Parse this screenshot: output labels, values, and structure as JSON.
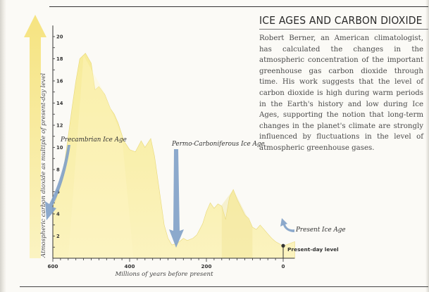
{
  "article": {
    "title": "ICE AGES AND CARBON DIOXIDE",
    "body": "Robert Berner, an American climatologist, has calculated the changes in the atmospheric concentration of the important greenhouse gas carbon dioxide through time. His work suggests that the level of carbon dioxide is high during warm periods in the Earth's history and low during Ice Ages, supporting the notion that long-term changes in the planet's climate are strongly influenced by fluctuations in the level of atmospheric greenhouse gases."
  },
  "chart_data": {
    "type": "area",
    "xlabel": "Millions of years before present",
    "ylabel": "Atmospheric carbon dioxide as multiple of present-day level",
    "xlim": [
      600,
      0
    ],
    "ylim": [
      0,
      21
    ],
    "x_ticks": [
      600,
      400,
      200,
      0
    ],
    "y_ticks": [
      2,
      4,
      6,
      8,
      10,
      12,
      14,
      16,
      18,
      20
    ],
    "grid": false,
    "series": [
      {
        "x": [
          600,
          590,
          575,
          560,
          550,
          540,
          530,
          515,
          500,
          490,
          480,
          465,
          450,
          440,
          430,
          415,
          400,
          385,
          370,
          360,
          345,
          335,
          320,
          310,
          300,
          290,
          280,
          270,
          260,
          250,
          235,
          225,
          210,
          200,
          190,
          180,
          170,
          160,
          150,
          140,
          130,
          120,
          110,
          100,
          90,
          80,
          70,
          60,
          50,
          40,
          30,
          20,
          10,
          0,
          -30
        ],
        "y": [
          4.6,
          5.5,
          7.2,
          11.0,
          13.6,
          16.0,
          18.0,
          18.5,
          17.6,
          15.2,
          15.5,
          14.8,
          13.5,
          13.0,
          12.2,
          10.6,
          9.8,
          9.6,
          10.6,
          10.0,
          10.8,
          9.2,
          5.5,
          3.0,
          1.8,
          1.2,
          1.3,
          1.5,
          1.8,
          1.6,
          1.8,
          2.1,
          3.1,
          4.2,
          5.0,
          4.5,
          4.9,
          4.7,
          3.5,
          5.5,
          6.2,
          5.3,
          4.6,
          3.9,
          3.6,
          2.8,
          2.6,
          3.0,
          2.6,
          2.2,
          1.8,
          1.5,
          1.3,
          1.1,
          1.5
        ]
      }
    ],
    "annotations": [
      {
        "label": "Precambrian Ice Age",
        "x": 600
      },
      {
        "label": "Permo-Carboniferous Ice Age",
        "x": 290
      },
      {
        "label": "Present Ice Age",
        "x": 0
      },
      {
        "label": "Present-day level",
        "x": 0,
        "y": 1
      }
    ]
  },
  "style": {
    "fill_color": "#f7ec9a",
    "fill_color_light": "#fbf3bf",
    "arrow_color": "#7fa0c8",
    "axis_arrow_color": "#f5e27a",
    "text_color": "#333333"
  }
}
